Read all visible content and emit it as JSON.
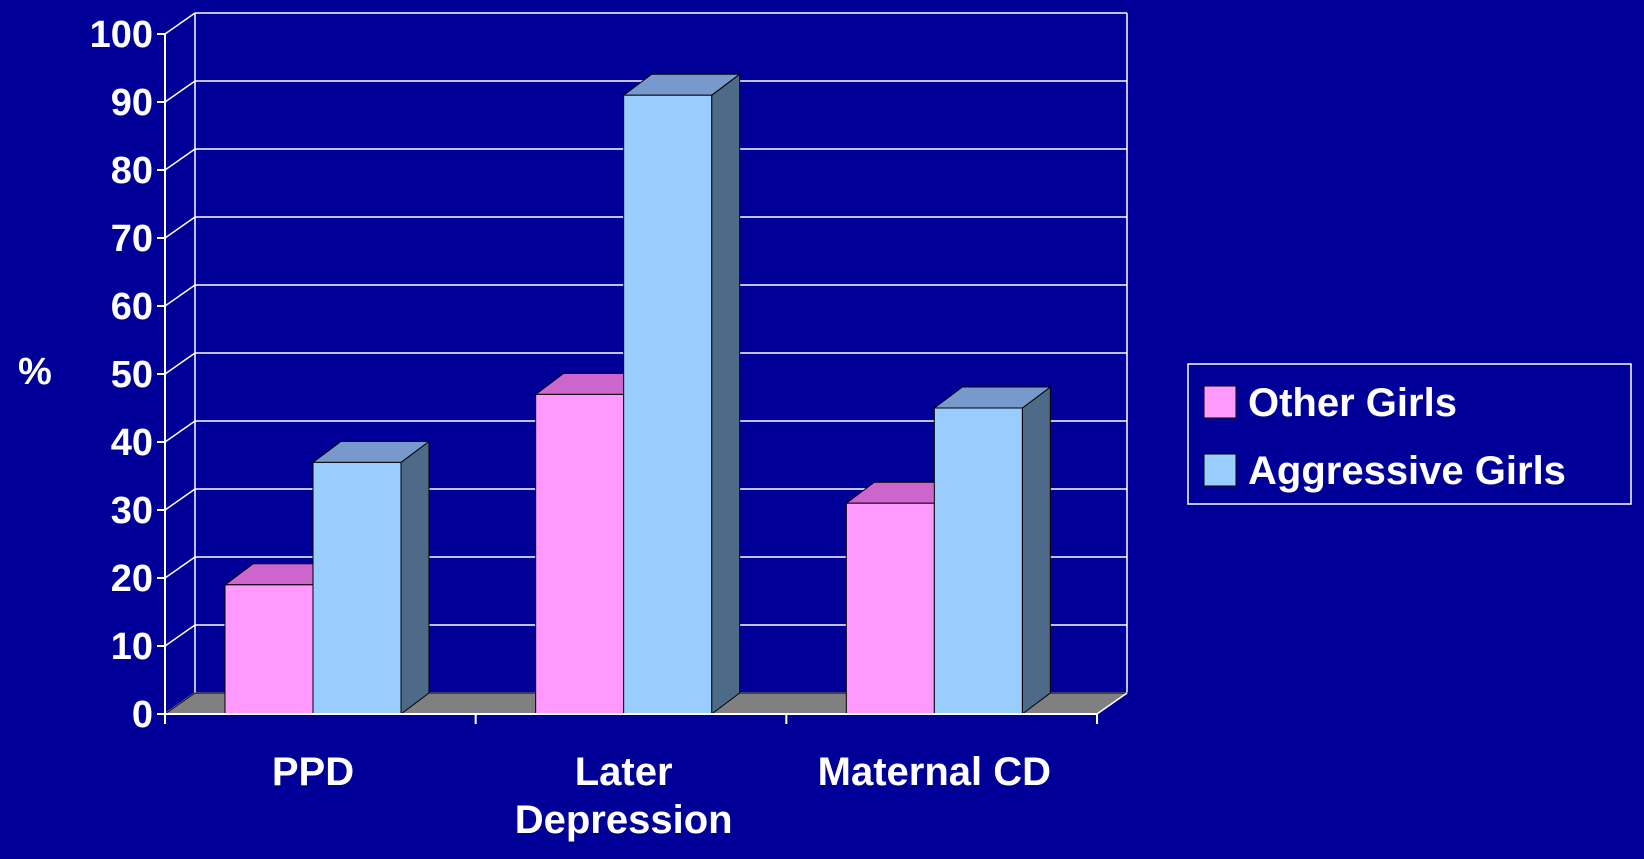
{
  "chart_data": {
    "type": "bar",
    "title": "",
    "xlabel": "",
    "ylabel": "%",
    "ylim": [
      0,
      100
    ],
    "yticks": [
      0,
      10,
      20,
      30,
      40,
      50,
      60,
      70,
      80,
      90,
      100
    ],
    "categories": [
      [
        "PPD"
      ],
      [
        "Later",
        "Depression"
      ],
      [
        "Maternal CD"
      ]
    ],
    "series": [
      {
        "name": "Other Girls",
        "values": [
          19,
          47,
          31
        ],
        "color": "#FF99FF",
        "top_color": "#CC66CC",
        "side_color": "#9966AA"
      },
      {
        "name": "Aggressive Girls",
        "values": [
          37,
          91,
          45
        ],
        "color": "#99CCFF",
        "top_color": "#7799CC",
        "side_color": "#4D6A88"
      }
    ],
    "grid": true,
    "three_d": true,
    "legend_position": "right",
    "colors": {
      "background": "#000099",
      "axes": "#FFFFFF",
      "floor": "#808080"
    }
  }
}
